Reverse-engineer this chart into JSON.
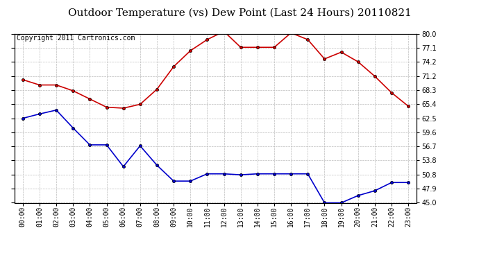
{
  "title": "Outdoor Temperature (vs) Dew Point (Last 24 Hours) 20110821",
  "copyright": "Copyright 2011 Cartronics.com",
  "hours": [
    "00:00",
    "01:00",
    "02:00",
    "03:00",
    "04:00",
    "05:00",
    "06:00",
    "07:00",
    "08:00",
    "09:00",
    "10:00",
    "11:00",
    "12:00",
    "13:00",
    "14:00",
    "15:00",
    "16:00",
    "17:00",
    "18:00",
    "19:00",
    "20:00",
    "21:00",
    "22:00",
    "23:00"
  ],
  "temp": [
    70.5,
    69.4,
    69.4,
    68.2,
    66.5,
    64.8,
    64.6,
    65.4,
    68.5,
    73.2,
    76.5,
    78.8,
    80.5,
    77.2,
    77.2,
    77.2,
    80.2,
    78.8,
    74.8,
    76.2,
    74.2,
    71.2,
    67.8,
    65.0
  ],
  "dew": [
    62.5,
    63.4,
    64.2,
    60.5,
    57.0,
    57.0,
    52.5,
    56.8,
    52.8,
    49.5,
    49.5,
    51.0,
    51.0,
    50.8,
    51.0,
    51.0,
    51.0,
    51.0,
    45.0,
    45.0,
    46.5,
    47.5,
    49.2,
    49.2
  ],
  "ylim_min": 45.0,
  "ylim_max": 80.0,
  "ytick_values": [
    45.0,
    47.9,
    50.8,
    53.8,
    56.7,
    59.6,
    62.5,
    65.4,
    68.3,
    71.2,
    74.2,
    77.1,
    80.0
  ],
  "ytick_labels": [
    "45.0",
    "47.9",
    "50.8",
    "53.8",
    "56.7",
    "59.6",
    "62.5",
    "65.4",
    "68.3",
    "71.2",
    "74.2",
    "77.1",
    "80.0"
  ],
  "temp_color": "#cc0000",
  "dew_color": "#0000cc",
  "bg_color": "#ffffff",
  "grid_color": "#bbbbbb",
  "title_fontsize": 11,
  "axis_fontsize": 7,
  "copyright_fontsize": 7
}
